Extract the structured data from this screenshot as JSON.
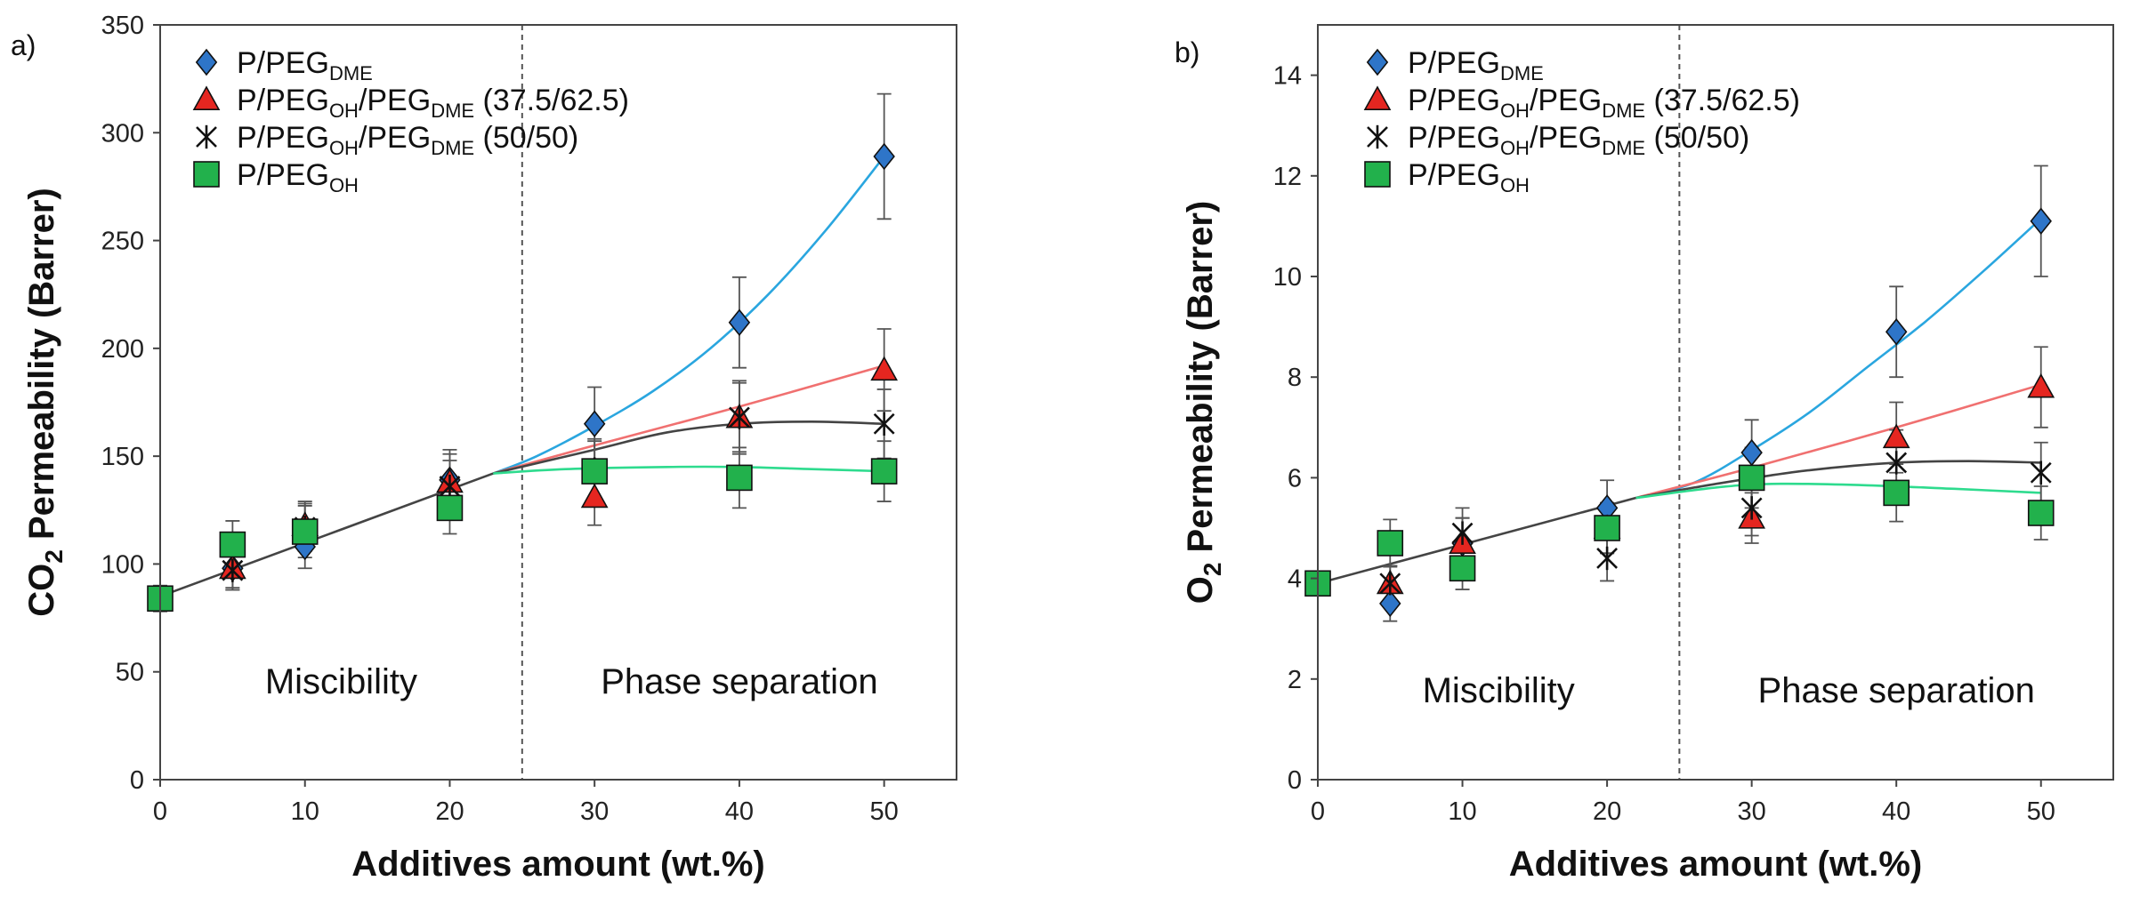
{
  "chart_data": [
    {
      "type": "scatter",
      "panel_label": "a)",
      "xlabel": "Additives amount (wt.%)",
      "ylabel_main": "CO",
      "ylabel_sub": "2",
      "ylabel_rest": " Permeability (Barrer)",
      "xlim": [
        0,
        55
      ],
      "ylim": [
        0,
        350
      ],
      "xticks": [
        0,
        10,
        20,
        30,
        40,
        50
      ],
      "yticks": [
        0,
        50,
        100,
        150,
        200,
        250,
        300,
        350
      ],
      "divider_x": 25,
      "region_left": "Miscibility",
      "region_right": "Phase separation",
      "series": [
        {
          "name": "P/PEG_DME",
          "label_main": "P/PEG",
          "label_sub": "DME",
          "label_suffix": "",
          "marker": "diamond",
          "color": "#2e75c8",
          "x": [
            5,
            10,
            20,
            30,
            40,
            50
          ],
          "y": [
            98,
            108,
            139,
            165,
            212,
            289
          ],
          "err": [
            10,
            10,
            14,
            17,
            21,
            29
          ]
        },
        {
          "name": "P/PEG_OH/PEG_DME (37.5/62.5)",
          "label_main": "P/PEG",
          "label_sub": "OH",
          "label_mid": "/PEG",
          "label_sub2": "DME",
          "label_suffix": "(37.5/62.5)",
          "marker": "triangle",
          "color": "#e52620",
          "x": [
            5,
            10,
            20,
            30,
            40,
            50
          ],
          "y": [
            98,
            118,
            138,
            131,
            168,
            190
          ],
          "err": [
            9,
            11,
            13,
            13,
            17,
            19
          ]
        },
        {
          "name": "P/PEG_OH/PEG_DME (50/50)",
          "label_main": "P/PEG",
          "label_sub": "OH",
          "label_mid": "/PEG",
          "label_sub2": "DME",
          "label_suffix": "(50/50)",
          "marker": "star",
          "color": "#111111",
          "x": [
            5,
            10,
            20,
            30,
            40,
            50
          ],
          "y": [
            97,
            117,
            136,
            144,
            168,
            165
          ],
          "err": [
            9,
            11,
            12,
            14,
            16,
            16
          ]
        },
        {
          "name": "P/PEG_OH",
          "label_main": "P/PEG",
          "label_sub": "OH",
          "label_suffix": "",
          "marker": "square",
          "color": "#22b14c",
          "x": [
            0,
            5,
            10,
            20,
            30,
            40,
            50
          ],
          "y": [
            84,
            109,
            115,
            126,
            143,
            140,
            143
          ],
          "err": [
            6,
            11,
            12,
            12,
            14,
            14,
            14
          ]
        }
      ],
      "fit_lines": [
        {
          "name": "linear-miscible",
          "color": "#444444",
          "x": [
            0,
            23
          ],
          "y": [
            85,
            142
          ]
        },
        {
          "name": "fit-dme",
          "color": "#2aa6df",
          "x": [
            23,
            26,
            30,
            34,
            38,
            42,
            46,
            50
          ],
          "y": [
            142,
            150,
            164,
            180,
            200,
            225,
            255,
            289
          ]
        },
        {
          "name": "fit-3762",
          "color": "#f07070",
          "x": [
            23,
            30,
            40,
            50
          ],
          "y": [
            142,
            155,
            173,
            192
          ]
        },
        {
          "name": "fit-5050",
          "color": "#444444",
          "x": [
            23,
            30,
            35,
            40,
            45,
            50
          ],
          "y": [
            142,
            153,
            161,
            165,
            166,
            165
          ]
        },
        {
          "name": "fit-oh",
          "color": "#2edb8e",
          "x": [
            23,
            28,
            35,
            40,
            45,
            50
          ],
          "y": [
            142,
            144,
            145,
            145,
            144,
            143
          ]
        }
      ]
    },
    {
      "type": "scatter",
      "panel_label": "b)",
      "xlabel": "Additives amount (wt.%)",
      "ylabel_main": "O",
      "ylabel_sub": "2",
      "ylabel_rest": " Permeability (Barrer)",
      "xlim": [
        0,
        55
      ],
      "ylim": [
        0,
        15
      ],
      "xticks": [
        0,
        10,
        20,
        30,
        40,
        50
      ],
      "yticks": [
        0,
        2,
        4,
        6,
        8,
        10,
        12,
        14
      ],
      "divider_x": 25,
      "region_left": "Miscibility",
      "region_right": "Phase separation",
      "series": [
        {
          "name": "P/PEG_DME",
          "label_main": "P/PEG",
          "label_sub": "DME",
          "label_suffix": "",
          "marker": "diamond",
          "color": "#2e75c8",
          "x": [
            5,
            10,
            20,
            30,
            40,
            50
          ],
          "y": [
            3.5,
            4.7,
            5.4,
            6.5,
            8.9,
            11.1
          ],
          "err": [
            0.35,
            0.5,
            0.55,
            0.65,
            0.9,
            1.1
          ]
        },
        {
          "name": "P/PEG_OH/PEG_DME (37.5/62.5)",
          "label_main": "P/PEG",
          "label_sub": "OH",
          "label_mid": "/PEG",
          "label_sub2": "DME",
          "label_suffix": "(37.5/62.5)",
          "marker": "triangle",
          "color": "#e52620",
          "x": [
            5,
            10,
            20,
            30,
            40,
            50
          ],
          "y": [
            3.9,
            4.7,
            5.0,
            5.2,
            6.8,
            7.8
          ],
          "err": [
            0.35,
            0.5,
            0.5,
            0.5,
            0.7,
            0.8
          ]
        },
        {
          "name": "P/PEG_OH/PEG_DME (50/50)",
          "label_main": "P/PEG",
          "label_sub": "OH",
          "label_mid": "/PEG",
          "label_sub2": "DME",
          "label_suffix": "(50/50)",
          "marker": "star",
          "color": "#111111",
          "x": [
            5,
            10,
            20,
            30,
            40,
            50
          ],
          "y": [
            3.9,
            4.9,
            4.4,
            5.4,
            6.3,
            6.1
          ],
          "err": [
            0.35,
            0.5,
            0.45,
            0.55,
            0.65,
            0.6
          ]
        },
        {
          "name": "P/PEG_OH",
          "label_main": "P/PEG",
          "label_sub": "OH",
          "label_suffix": "",
          "marker": "square",
          "color": "#22b14c",
          "x": [
            0,
            5,
            10,
            20,
            30,
            40,
            50
          ],
          "y": [
            3.9,
            4.7,
            4.2,
            5.0,
            6.0,
            5.7,
            5.3
          ],
          "err": [
            0.2,
            0.47,
            0.42,
            0.5,
            0.6,
            0.57,
            0.53
          ]
        }
      ],
      "fit_lines": [
        {
          "name": "linear-miscible",
          "color": "#444444",
          "x": [
            0,
            22
          ],
          "y": [
            3.9,
            5.6
          ]
        },
        {
          "name": "fit-dme",
          "color": "#2aa6df",
          "x": [
            22,
            26,
            30,
            34,
            38,
            42,
            46,
            50
          ],
          "y": [
            5.6,
            5.9,
            6.55,
            7.3,
            8.2,
            9.1,
            10.1,
            11.15
          ]
        },
        {
          "name": "fit-3762",
          "color": "#f07070",
          "x": [
            22,
            30,
            40,
            50
          ],
          "y": [
            5.6,
            6.2,
            7.0,
            7.85
          ]
        },
        {
          "name": "fit-5050",
          "color": "#444444",
          "x": [
            22,
            28,
            34,
            40,
            45,
            50
          ],
          "y": [
            5.6,
            5.9,
            6.15,
            6.3,
            6.33,
            6.3
          ]
        },
        {
          "name": "fit-oh",
          "color": "#2edb8e",
          "x": [
            22,
            28,
            32,
            38,
            44,
            50
          ],
          "y": [
            5.6,
            5.82,
            5.88,
            5.85,
            5.78,
            5.7
          ]
        }
      ]
    }
  ]
}
